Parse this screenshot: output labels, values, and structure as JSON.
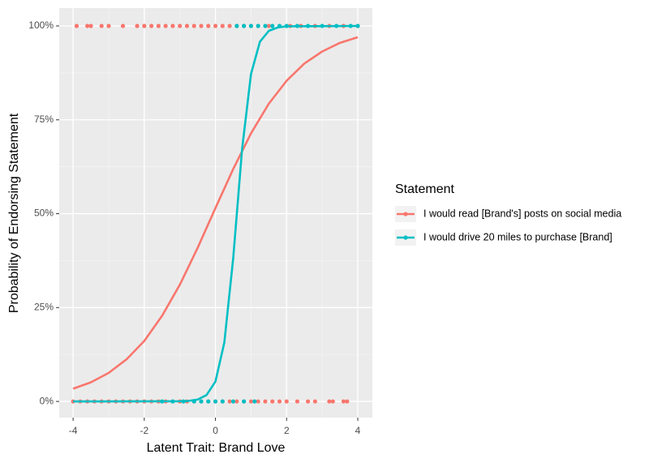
{
  "chart_data": {
    "type": "line",
    "x_label": "Latent Trait: Brand Love",
    "y_label": "Probability of Endorsing Statement",
    "legend_title": "Statement",
    "legend": "right",
    "grid": true,
    "xlim": [
      -4.39,
      4.41
    ],
    "ylim": [
      -4.3,
      104.75
    ],
    "xticks": [
      -4,
      -2,
      0,
      2,
      4
    ],
    "yticks": [
      {
        "value": 0,
        "label": "0%"
      },
      {
        "value": 25,
        "label": "25%"
      },
      {
        "value": 50,
        "label": "50%"
      },
      {
        "value": 75,
        "label": "75%"
      },
      {
        "value": 100,
        "label": "100%"
      }
    ],
    "series": [
      {
        "name": "I would read [Brand's] posts on social media",
        "color": "#f8766d",
        "x": [
          -4,
          -3.5,
          -3,
          -2.5,
          -2,
          -1.5,
          -1,
          -0.5,
          0,
          0.5,
          1,
          1.5,
          2,
          2.5,
          3,
          3.5,
          4
        ],
        "values": [
          3.4,
          5.1,
          7.6,
          11.2,
          16.1,
          22.8,
          31.1,
          40.9,
          51.5,
          61.9,
          71.4,
          79.3,
          85.4,
          90.0,
          93.2,
          95.5,
          97.0
        ],
        "points": {
          "x": [
            -3.9,
            -3.6,
            -3.5,
            -3.2,
            -3.0,
            -2.6,
            -2.2,
            -2.0,
            -1.8,
            -1.6,
            -1.4,
            -1.2,
            -1.0,
            -0.8,
            -0.6,
            -0.4,
            -0.2,
            0,
            0.2,
            0.4,
            0.6,
            0.8,
            1.0,
            1.2,
            1.5,
            1.8,
            2.1,
            2.4,
            2.8,
            3.2,
            3.6,
            4.0,
            -4,
            -3.8,
            -3.6,
            -3.4,
            -3.2,
            -3.0,
            -2.8,
            -2.6,
            -2.4,
            -2.2,
            -2.0,
            -1.8,
            -1.6,
            -1.4,
            -1.2,
            -1.0,
            -0.8,
            -0.6,
            -0.4,
            -0.2,
            0,
            0.2,
            0.4,
            0.6,
            0.8,
            1.0,
            1.2,
            1.4,
            1.6,
            1.8,
            2.0,
            2.3,
            2.6,
            2.8,
            3.2,
            3.3,
            3.6,
            3.7
          ],
          "values": [
            100,
            100,
            100,
            100,
            100,
            100,
            100,
            100,
            100,
            100,
            100,
            100,
            100,
            100,
            100,
            100,
            100,
            100,
            100,
            100,
            100,
            100,
            100,
            100,
            100,
            100,
            100,
            100,
            100,
            100,
            100,
            100,
            0,
            0,
            0,
            0,
            0,
            0,
            0,
            0,
            0,
            0,
            0,
            0,
            0,
            0,
            0,
            0,
            0,
            0,
            0,
            0,
            0,
            0,
            0,
            0,
            0,
            0,
            0,
            0,
            0,
            0,
            0,
            0,
            0,
            0,
            0,
            0,
            0,
            0
          ]
        }
      },
      {
        "name": "I would drive 20 miles to purchase [Brand]",
        "color": "#00bfc4",
        "x": [
          -4,
          -1,
          -0.75,
          -0.5,
          -0.25,
          0,
          0.25,
          0.5,
          0.75,
          1,
          1.25,
          1.5,
          1.75,
          2,
          4
        ],
        "values": [
          0,
          0.05,
          0.15,
          0.5,
          1.7,
          5.3,
          15.7,
          38.2,
          67.3,
          87.2,
          95.8,
          98.7,
          99.6,
          99.9,
          100
        ],
        "points": {
          "x": [
            0.6,
            0.8,
            1.0,
            1.2,
            1.4,
            1.6,
            1.8,
            2.0,
            2.3,
            2.6,
            3.0,
            3.4,
            3.8,
            4.0,
            -1.5,
            -1.2,
            -0.9,
            -0.6,
            -0.4,
            -0.2,
            0,
            0.2,
            0.5,
            0.8,
            1.1
          ],
          "values": [
            100,
            100,
            100,
            100,
            100,
            100,
            100,
            100,
            100,
            100,
            100,
            100,
            100,
            100,
            0,
            0,
            0,
            0,
            0,
            0,
            0,
            0,
            0,
            0,
            0
          ]
        }
      }
    ]
  }
}
